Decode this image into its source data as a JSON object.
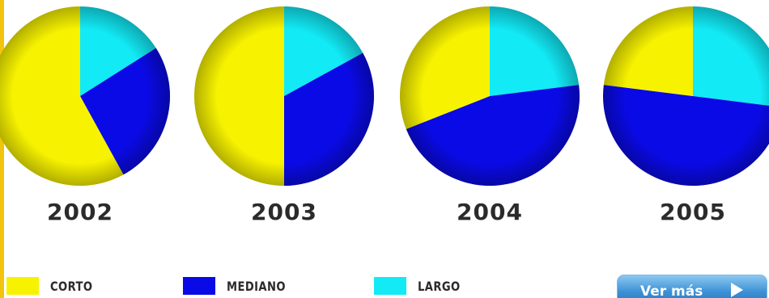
{
  "chart_data": [
    {
      "type": "pie",
      "title": "2002",
      "categories": [
        "CORTO",
        "MEDIANO",
        "LARGO"
      ],
      "values": [
        58,
        26,
        16
      ]
    },
    {
      "type": "pie",
      "title": "2003",
      "categories": [
        "CORTO",
        "MEDIANO",
        "LARGO"
      ],
      "values": [
        50,
        33,
        17
      ]
    },
    {
      "type": "pie",
      "title": "2004",
      "categories": [
        "CORTO",
        "MEDIANO",
        "LARGO"
      ],
      "values": [
        31,
        46,
        23
      ]
    },
    {
      "type": "pie",
      "title": "2005",
      "categories": [
        "CORTO",
        "MEDIANO",
        "LARGO"
      ],
      "values": [
        23,
        50,
        27
      ]
    }
  ],
  "legend": [
    {
      "label": "CORTO",
      "color": "#f7f200"
    },
    {
      "label": "MEDIANO",
      "color": "#0a0ae6"
    },
    {
      "label": "LARGO",
      "color": "#12eaf6"
    }
  ],
  "button": {
    "label": "Ver más",
    "icon": "play-arrow-icon"
  }
}
